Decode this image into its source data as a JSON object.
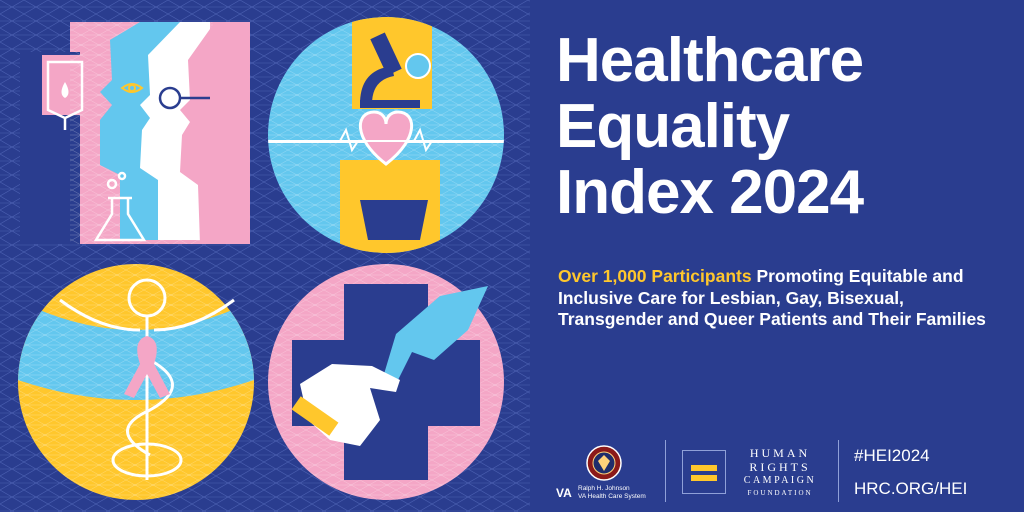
{
  "title": {
    "line1": "Healthcare",
    "line2": "Equality",
    "line3": "Index 2024"
  },
  "subtitle": {
    "highlight": "Over 1,000 Participants",
    "text": "Promoting Equitable and Inclusive Care for Lesbian, Gay, Bisexual, Transgender and Queer Patients and Their Families"
  },
  "footer": {
    "va_mark": "VA",
    "va_line1": "Ralph H. Johnson",
    "va_line2": "VA Health Care System",
    "hrc_line1": "HUMAN",
    "hrc_line2": "RIGHTS",
    "hrc_line3": "CAMPAIGN",
    "hrc_line4": "FOUNDATION",
    "hashtag": "#HEI2024",
    "url": "HRC.ORG/HEI"
  },
  "colors": {
    "background": "#2a3d8f",
    "pink": "#f4a6c6",
    "light_blue": "#63c7ee",
    "yellow": "#ffc72c",
    "white": "#ffffff"
  },
  "icons": [
    "iv-bag-icon",
    "eye-icon",
    "flask-icon",
    "microscope-icon",
    "heart-icon",
    "mortar-pestle-icon",
    "caduceus-icon",
    "awareness-ribbon-icon",
    "medical-cross-icon",
    "hand-icon"
  ]
}
